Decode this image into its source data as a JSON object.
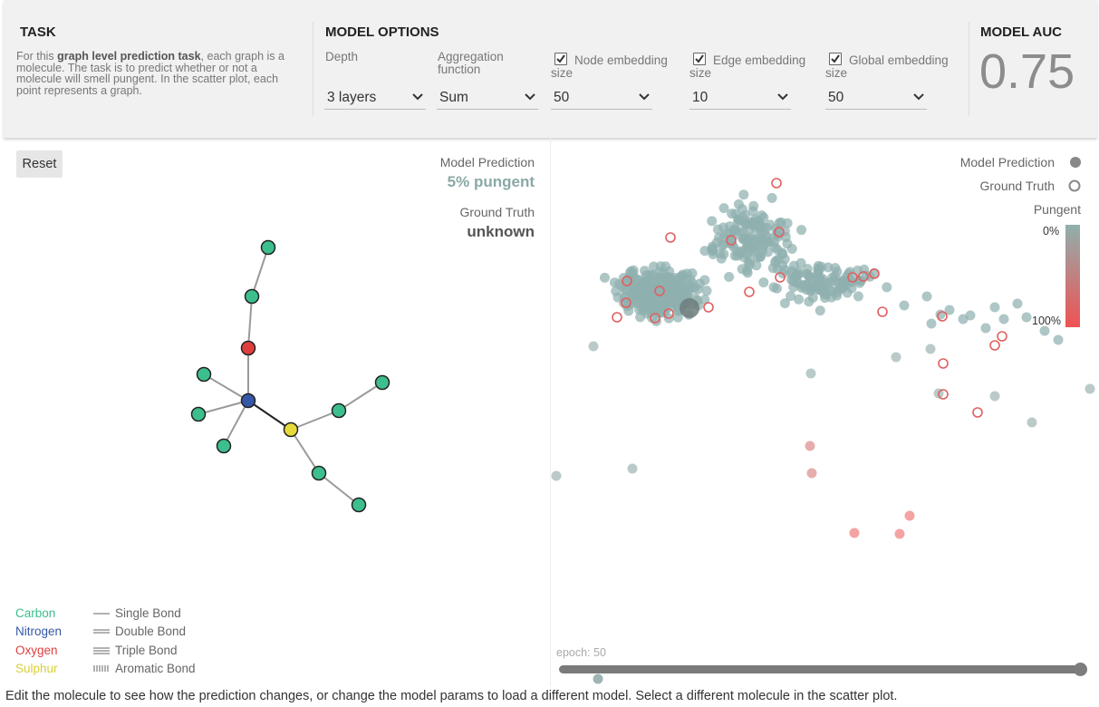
{
  "task": {
    "title": "TASK",
    "desc_prefix": "For this ",
    "desc_bold": "graph level prediction task",
    "desc_suffix": ", each graph is a molecule. The task is to predict whether or not a molecule will smell pungent. In the scatter plot, each point represents a graph."
  },
  "options": {
    "title": "MODEL OPTIONS",
    "depth": {
      "label": "Depth",
      "value": "3 layers"
    },
    "aggregation": {
      "label": "Aggregation function",
      "value": "Sum"
    },
    "node": {
      "label": "Node embedding size",
      "value": "50",
      "checked": true
    },
    "edge": {
      "label": "Edge embedding size",
      "value": "10",
      "checked": true
    },
    "global": {
      "label": "Global embedding size",
      "value": "50",
      "checked": true
    }
  },
  "auc": {
    "title": "MODEL AUC",
    "value": "0.75"
  },
  "left_panel": {
    "reset_label": "Reset",
    "model_prediction_label": "Model Prediction",
    "model_prediction_value": "5% pungent",
    "ground_truth_label": "Ground Truth",
    "ground_truth_value": "unknown"
  },
  "molecule": {
    "colors": {
      "carbon": "#3dbf8d",
      "nitrogen": "#3557a7",
      "oxygen": "#e03e3e",
      "sulphur": "#e6db3a"
    },
    "nodes": [
      {
        "id": "c1",
        "type": "carbon"
      },
      {
        "id": "c2",
        "type": "carbon"
      },
      {
        "id": "o1",
        "type": "oxygen"
      },
      {
        "id": "n1",
        "type": "nitrogen"
      },
      {
        "id": "c3",
        "type": "carbon"
      },
      {
        "id": "c4",
        "type": "carbon"
      },
      {
        "id": "c5",
        "type": "carbon"
      },
      {
        "id": "s1",
        "type": "sulphur"
      },
      {
        "id": "c6",
        "type": "carbon"
      },
      {
        "id": "c7",
        "type": "carbon"
      },
      {
        "id": "c8",
        "type": "carbon"
      },
      {
        "id": "c9",
        "type": "carbon"
      }
    ],
    "bonds": [
      {
        "from": "c1",
        "to": "c2",
        "type": "single"
      },
      {
        "from": "c2",
        "to": "o1",
        "type": "single"
      },
      {
        "from": "o1",
        "to": "n1",
        "type": "single"
      },
      {
        "from": "n1",
        "to": "c3",
        "type": "single"
      },
      {
        "from": "n1",
        "to": "c4",
        "type": "single"
      },
      {
        "from": "n1",
        "to": "c5",
        "type": "single"
      },
      {
        "from": "n1",
        "to": "s1",
        "type": "single",
        "selected": true
      },
      {
        "from": "s1",
        "to": "c6",
        "type": "single"
      },
      {
        "from": "c6",
        "to": "c7",
        "type": "single"
      },
      {
        "from": "s1",
        "to": "c8",
        "type": "single"
      },
      {
        "from": "c8",
        "to": "c9",
        "type": "single"
      }
    ]
  },
  "legend": {
    "atoms": [
      {
        "label": "Carbon",
        "color": "#3dbf8d"
      },
      {
        "label": "Nitrogen",
        "color": "#3557a7"
      },
      {
        "label": "Oxygen",
        "color": "#e03e3e"
      },
      {
        "label": "Sulphur",
        "color": "#d9cf3b"
      }
    ],
    "bonds": [
      {
        "label": "Single Bond"
      },
      {
        "label": "Double Bond"
      },
      {
        "label": "Triple Bond"
      },
      {
        "label": "Aromatic Bond"
      }
    ]
  },
  "scatter": {
    "legend_prediction": "Model Prediction",
    "legend_truth": "Ground Truth",
    "colorbar_title": "Pungent",
    "colorbar_min": "0%",
    "colorbar_max": "100%",
    "color_low": "#8fb0ae",
    "color_high": "#f05252",
    "epoch_label": "epoch: 50",
    "epoch_fraction": 1.0
  },
  "footer": "Edit the molecule to see how the prediction changes, or change the model params to load a different model. Select a different molecule in the scatter plot."
}
